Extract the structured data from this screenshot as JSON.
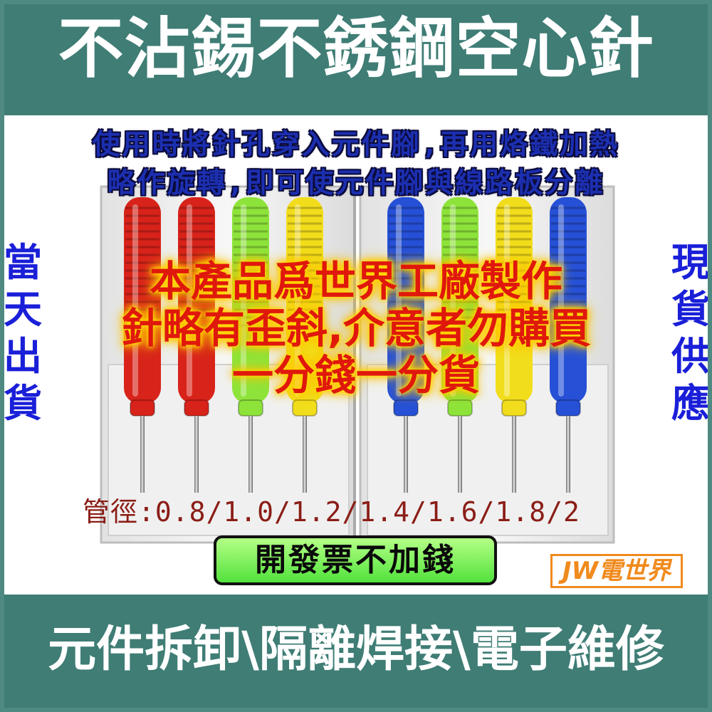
{
  "header": {
    "title": "不沾錫不銹鋼空心針"
  },
  "usage_text": [
    "使用時將針孔穿入元件腳,再用烙鐵加熱",
    "略作旋轉,即可使元件腳與線路板分離"
  ],
  "side_left": [
    "當",
    "天",
    "出",
    "貨"
  ],
  "side_right": [
    "現",
    "貨",
    "供",
    "應"
  ],
  "notice": [
    "本產品爲世界工廠製作",
    "針略有歪斜,介意者勿購買",
    "一分錢一分貨"
  ],
  "spec": "管徑:0.8/1.0/1.2/1.4/1.6/1.8/2",
  "badge": "開發票不加錢",
  "brand": "JW電世界",
  "footer": {
    "title": "元件拆卸\\隔離焊接\\電子維修"
  },
  "colors": {
    "band": "#3f7d75",
    "usage_text": "#1c2fb0",
    "side_text": "#1a1fd8",
    "notice_text": "#e0180c",
    "spec_text": "#8a1d16",
    "badge_bg": "#6cf04c",
    "brand": "#f08a1c"
  },
  "product_image": {
    "needles": [
      {
        "color": "#d8231a",
        "label": ""
      },
      {
        "color": "#d8231a",
        "label": ""
      },
      {
        "color": "#8ee33a",
        "label": ""
      },
      {
        "color": "#f2dd1c",
        "label": ""
      },
      {
        "color": "#2650d6",
        "label": ""
      },
      {
        "color": "#8ee33a",
        "label": ""
      },
      {
        "color": "#f2dd1c",
        "label": ""
      },
      {
        "color": "#2650d6",
        "label": ""
      }
    ]
  }
}
